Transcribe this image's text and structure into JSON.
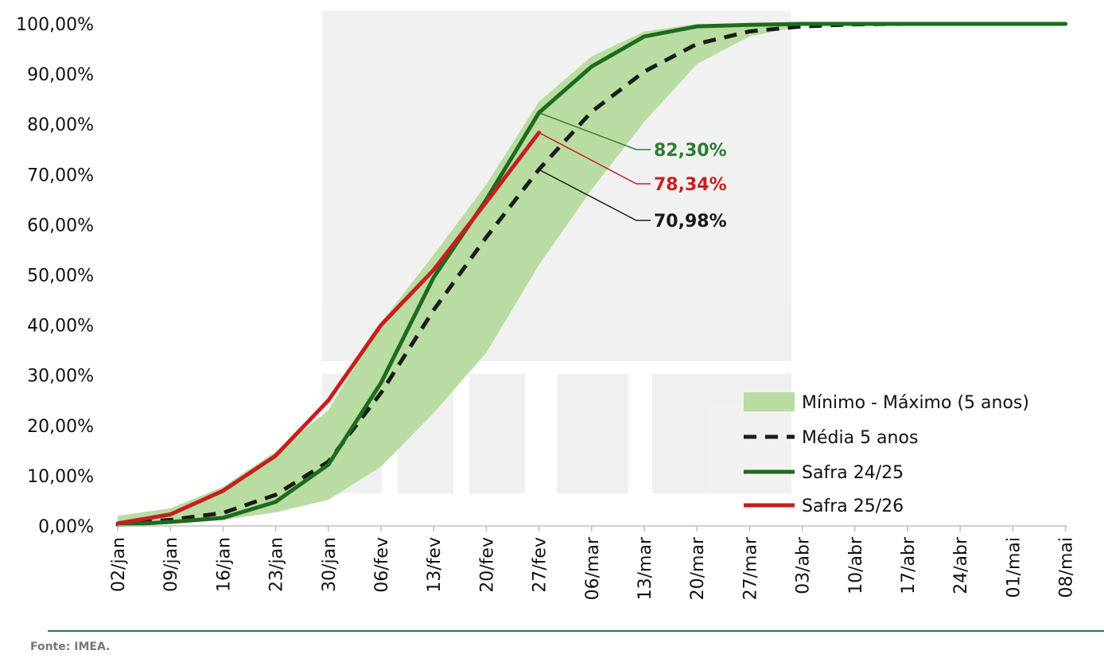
{
  "chart_data": {
    "type": "line",
    "title": "",
    "xlabel": "",
    "ylabel": "",
    "ylim": [
      0,
      100
    ],
    "ytick_labels": [
      "0,00%",
      "10,00%",
      "20,00%",
      "30,00%",
      "40,00%",
      "50,00%",
      "60,00%",
      "70,00%",
      "80,00%",
      "90,00%",
      "100,00%"
    ],
    "categories": [
      "02/jan",
      "09/jan",
      "16/jan",
      "23/jan",
      "30/jan",
      "06/fev",
      "13/fev",
      "20/fev",
      "27/fev",
      "06/mar",
      "13/mar",
      "20/mar",
      "27/mar",
      "03/abr",
      "10/abr",
      "17/abr",
      "24/abr",
      "01/mai",
      "08/mai"
    ],
    "band": {
      "name": "Mínimo - Máximo (5 anos)",
      "color": "#b9dca2",
      "min": [
        0.1,
        0.4,
        1.2,
        2.7,
        5.2,
        11.8,
        22.5,
        34.5,
        52.0,
        67.0,
        80.5,
        92.0,
        97.5,
        99.6,
        99.9,
        100,
        100,
        100,
        100
      ],
      "max": [
        2.0,
        3.5,
        7.8,
        14.8,
        23.0,
        40.5,
        54.0,
        68.0,
        84.5,
        93.5,
        98.5,
        100,
        100,
        100,
        100,
        100,
        100,
        100,
        100
      ]
    },
    "series": [
      {
        "name": "Média 5 anos",
        "color": "#1a1a1a",
        "dashed": true,
        "values": [
          0.4,
          1.2,
          2.6,
          6.2,
          12.8,
          26.5,
          43.0,
          57.5,
          71.0,
          82.5,
          90.5,
          96.0,
          98.5,
          99.5,
          99.9,
          100,
          100,
          100,
          100
        ]
      },
      {
        "name": "Safra 24/25",
        "color": "#1e6b1e",
        "dashed": false,
        "values": [
          0.2,
          0.8,
          1.6,
          4.8,
          12.2,
          28.5,
          49.5,
          65.0,
          82.3,
          91.5,
          97.5,
          99.5,
          99.8,
          100,
          100,
          100,
          100,
          100,
          100
        ]
      },
      {
        "name": "Safra 25/26",
        "color": "#c81e1e",
        "dashed": false,
        "values": [
          0.5,
          2.3,
          7.0,
          14.0,
          25.0,
          40.0,
          51.0,
          64.5,
          78.34,
          null,
          null,
          null,
          null,
          null,
          null,
          null,
          null,
          null,
          null
        ]
      }
    ],
    "annotations": [
      {
        "text": "82,30%",
        "series": "Safra 24/25",
        "category": "27/fev",
        "value": 82.3,
        "color": "#2e7d32"
      },
      {
        "text": "78,34%",
        "series": "Safra 25/26",
        "category": "27/fev",
        "value": 78.34,
        "color": "#c81e1e"
      },
      {
        "text": "70,98%",
        "series": "Média 5 anos",
        "category": "27/fev",
        "value": 70.98,
        "color": "#1a1a1a"
      }
    ],
    "legend": {
      "placement": "bottom-right",
      "entries": [
        "Mínimo - Máximo (5 anos)",
        "Média 5 anos",
        "Safra 24/25",
        "Safra 25/26"
      ]
    }
  },
  "footer": {
    "source": "Fonte: IMEA."
  }
}
